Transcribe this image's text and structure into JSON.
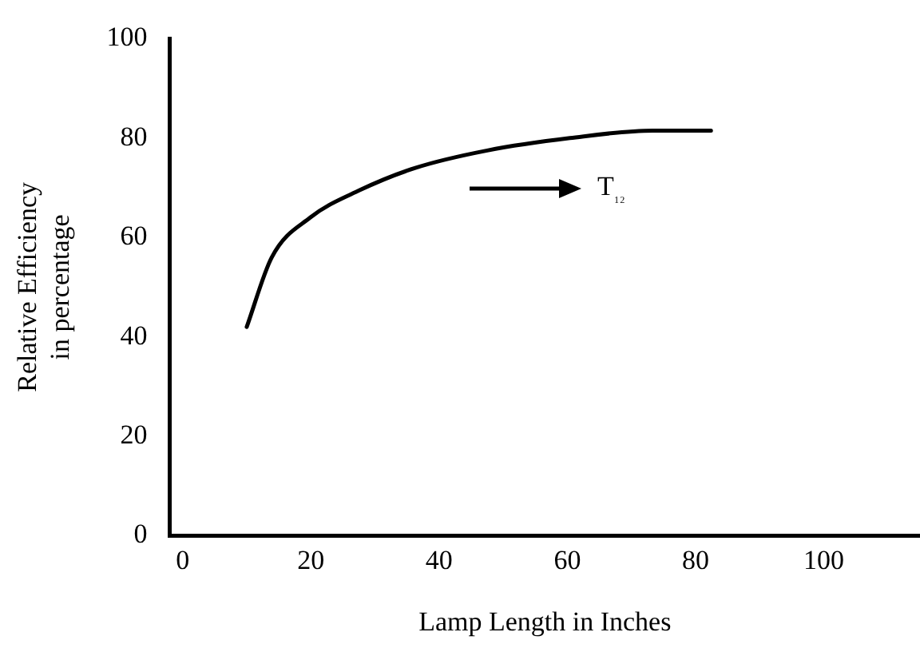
{
  "chart_data": {
    "type": "line",
    "xlabel": "Lamp Length in Inches",
    "ylabel": "Relative Efficiency\nin percentage",
    "x": [
      10,
      13.9,
      19.9,
      27.6,
      36.3,
      47.5,
      60.4,
      73.3,
      82.4
    ],
    "series": [
      {
        "color": "#000000",
        "values": [
          42,
          56,
          64,
          69.5,
          74,
          77.5,
          80,
          81.5,
          81.5
        ]
      }
    ],
    "xlim": [
      -2,
      115
    ],
    "xticks": [
      0,
      20,
      40,
      60,
      80,
      100
    ],
    "ylim": [
      0,
      100
    ],
    "yticks": [
      0,
      20,
      40,
      60,
      80,
      100
    ],
    "annotations": [
      "T₁₂"
    ],
    "grid": false,
    "legend": false,
    "marker": "none",
    "line_style": "solid"
  }
}
